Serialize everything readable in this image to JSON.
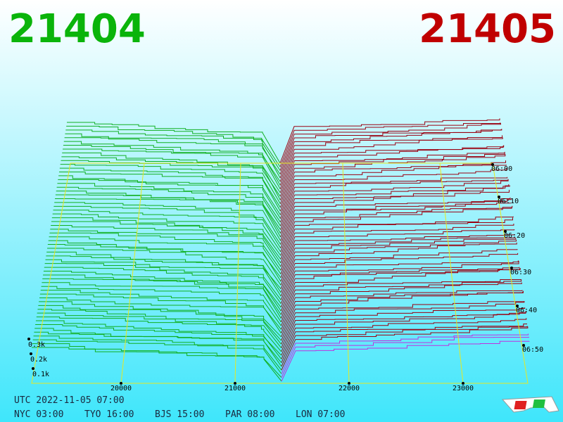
{
  "header": {
    "bid": "21404",
    "ask": "21405"
  },
  "price_axis": [
    "20000",
    "21000",
    "22000",
    "23000"
  ],
  "depth_axis": [
    "0.3k",
    "0.2k",
    "0.1k"
  ],
  "time_axis": [
    "06:00",
    "06:10",
    "06:20",
    "06:30",
    "06:40",
    "06:50"
  ],
  "footer": {
    "utc": "UTC 2022-11-05 07:00",
    "zones": [
      "NYC 03:00",
      "TYO 16:00",
      "BJS 15:00",
      "PAR 08:00",
      "LON 07:00"
    ]
  }
}
